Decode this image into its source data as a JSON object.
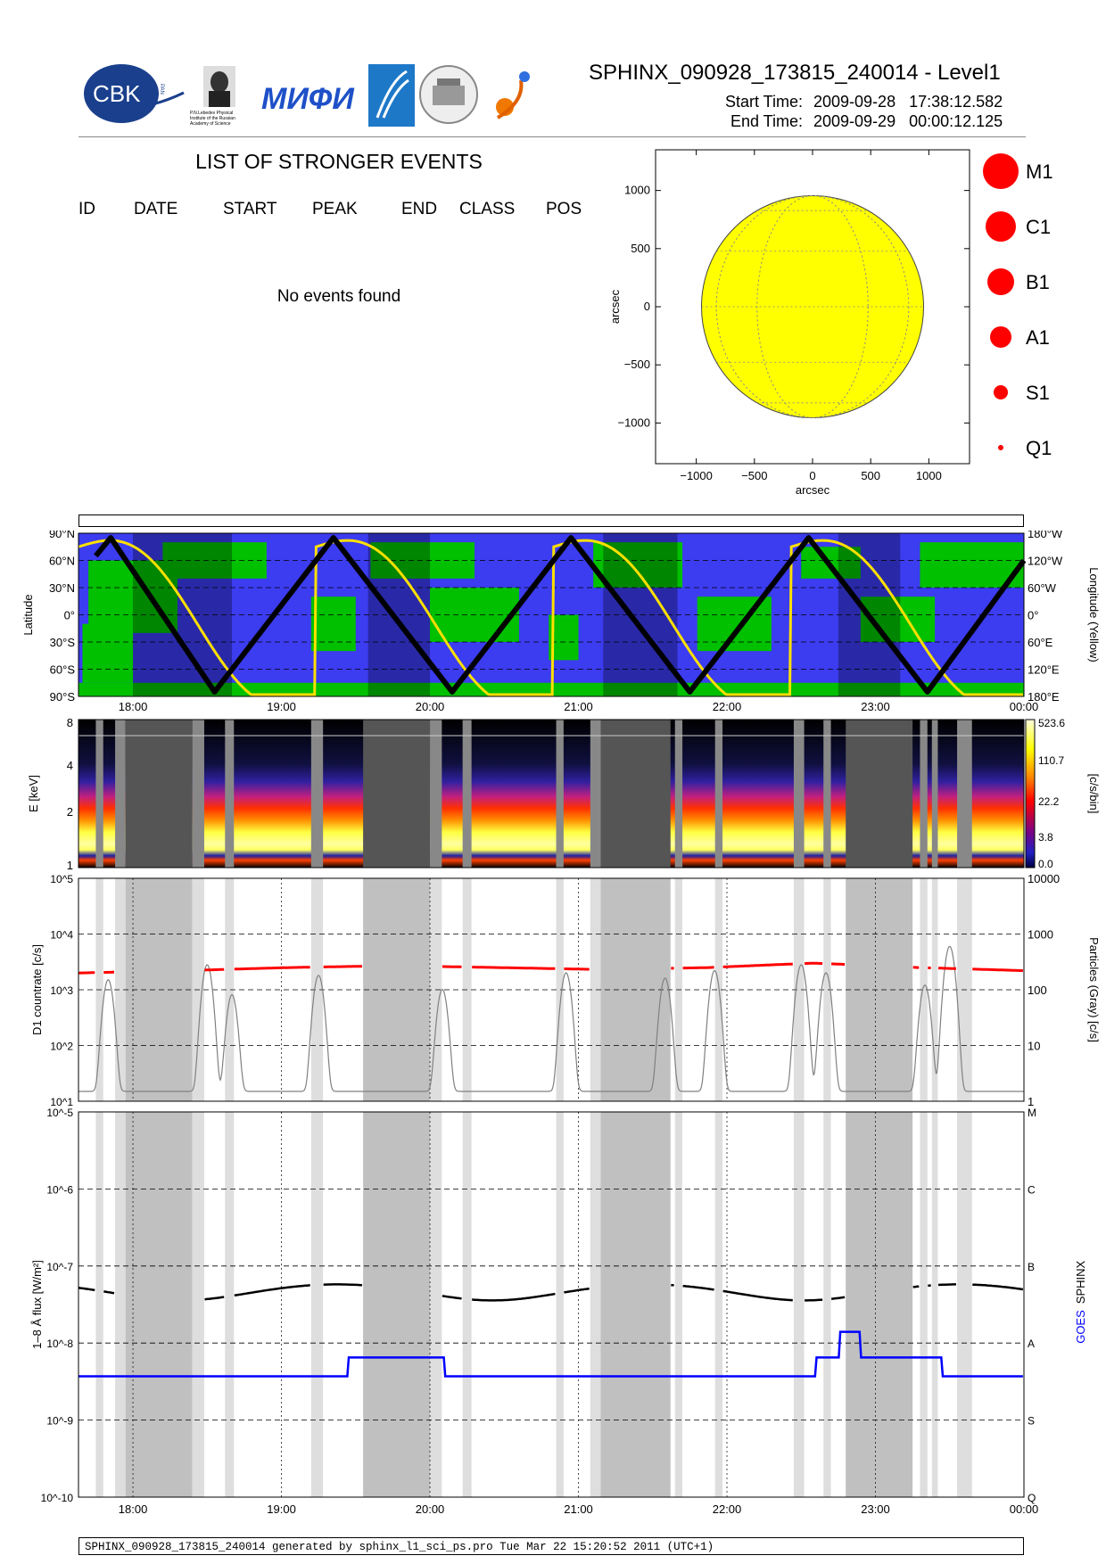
{
  "header": {
    "title": "SPHINX_090928_173815_240014 - Level1",
    "start_label": "Start Time:",
    "start_value": "2009-09-28   17:38:12.582",
    "end_label": "End Time:",
    "end_value": "2009-09-29   00:00:12.125"
  },
  "logos": {
    "cbk": "CBK",
    "cbk_pan": "PAN",
    "lebedev": "P.N.Lebedev Physical Institute of the Russian Academy of Science",
    "mifi": "МИФИ"
  },
  "events": {
    "title": "LIST OF STRONGER EVENTS",
    "columns": [
      "ID",
      "DATE",
      "START",
      "PEAK",
      "END",
      "CLASS",
      "POS"
    ],
    "empty_message": "No events found"
  },
  "colors": {
    "sun": "#ffff00",
    "marker": "#ff0000",
    "map_blue": "#3c3cf0",
    "map_green": "#00c000",
    "sphinx": "#000000",
    "goes": "#0000ff",
    "particles": "#808080",
    "counts": "#ff0000"
  },
  "chart_data": [
    {
      "type": "scatter",
      "name": "sun-disk",
      "xlabel": "arcsec",
      "ylabel": "arcsec",
      "xlim": [
        -1350,
        1350
      ],
      "ylim": [
        -1350,
        1350
      ],
      "xticks": [
        -1000,
        -500,
        0,
        500,
        1000
      ],
      "yticks": [
        1000,
        500,
        0,
        -500,
        -1000
      ],
      "xtick_labels": [
        "−1000",
        "−500",
        "0",
        "500",
        "1000"
      ],
      "ytick_labels": [
        "1000",
        "500",
        "0",
        "−500",
        "−1000"
      ],
      "solar_radius": 955,
      "legend_classes": [
        "M1",
        "C1",
        "B1",
        "A1",
        "S1",
        "Q1"
      ],
      "legend_sizes": [
        20,
        17,
        15,
        12,
        8,
        3
      ]
    },
    {
      "type": "line",
      "name": "orbit-latitude-map",
      "ylabel": "Latitude",
      "y2label": "Longitude (Yellow)",
      "x_time_range": [
        "17:38",
        "24:00"
      ],
      "x_tick_labels": [
        "18:00",
        "19:00",
        "20:00",
        "21:00",
        "22:00",
        "23:00",
        "00:00"
      ],
      "y_tick_labels": [
        "90°N",
        "60°N",
        "30°N",
        "0°",
        "30°S",
        "60°S",
        "90°S"
      ],
      "y_ticks": [
        90,
        60,
        30,
        0,
        -30,
        -60,
        -90
      ],
      "y2_tick_labels": [
        "180°W",
        "120°W",
        "60°W",
        "0°",
        "60°E",
        "120°E",
        "180°E"
      ],
      "latitude_extrema": [
        [
          17.75,
          65
        ],
        [
          17.85,
          85
        ],
        [
          18.55,
          -85
        ],
        [
          19.35,
          85
        ],
        [
          20.15,
          -85
        ],
        [
          20.95,
          85
        ],
        [
          21.75,
          -85
        ],
        [
          22.55,
          85
        ],
        [
          23.35,
          -85
        ],
        [
          24.0,
          60
        ]
      ],
      "eclipse_intervals": [
        [
          "18:00",
          "18:40"
        ],
        [
          "19:35",
          "20:00"
        ],
        [
          "21:10",
          "21:40"
        ],
        [
          "22:45",
          "23:10"
        ]
      ]
    },
    {
      "type": "heatmap",
      "name": "spectrogram",
      "ylabel": "E [keV]",
      "y_tick_labels": [
        "8",
        "4",
        "2",
        "1"
      ],
      "colorbar_labels": [
        "523.6",
        "110.7",
        "22.2",
        "3.8",
        "0.0"
      ],
      "colorbar_title": "[c/s/bin]",
      "x_tick_labels": [
        "18:00",
        "19:00",
        "20:00",
        "21:00",
        "22:00",
        "23:00",
        "00:00"
      ]
    },
    {
      "type": "line",
      "name": "countrate",
      "ylabel": "D1 countrate [c/s]",
      "y2label": "Particles (Gray) [c/s]",
      "y_scale": "log",
      "ylim": [
        10,
        100000
      ],
      "y_tick_labels": [
        "10^5",
        "10^4",
        "10^3",
        "10^2",
        "10^1"
      ],
      "y2_tick_labels": [
        "10000",
        "1000",
        "100",
        "10",
        "1"
      ],
      "series": [
        {
          "name": "D1 countrate",
          "color": "red",
          "approx_values": [
            2000,
            2200,
            2500,
            2700,
            2500,
            2300,
            2500,
            3000,
            2500,
            2200
          ]
        },
        {
          "name": "Particles (Gray)",
          "color": "gray",
          "peaks": [
            [
              "17:50",
              150
            ],
            [
              "18:30",
              280
            ],
            [
              "18:40",
              80
            ],
            [
              "19:15",
              180
            ],
            [
              "20:05",
              100
            ],
            [
              "20:55",
              200
            ],
            [
              "21:35",
              160
            ],
            [
              "21:55",
              220
            ],
            [
              "22:30",
              280
            ],
            [
              "22:40",
              200
            ],
            [
              "23:20",
              120
            ],
            [
              "23:30",
              600
            ]
          ]
        }
      ]
    },
    {
      "type": "line",
      "name": "flux",
      "ylabel": "1–8 Å flux [W/m²]",
      "y2label": "SPHINX GOES",
      "y2label_parts": [
        "SPHINX",
        "GOES"
      ],
      "y_scale": "log",
      "ylim": [
        1e-10,
        1e-05
      ],
      "y_tick_labels": [
        "10^-5",
        "10^-6",
        "10^-7",
        "10^-8",
        "10^-9",
        "10^-10"
      ],
      "class_labels": [
        "M",
        "C",
        "B",
        "A",
        "S",
        "Q"
      ],
      "x_tick_labels": [
        "18:00",
        "19:00",
        "20:00",
        "21:00",
        "22:00",
        "23:00",
        "00:00"
      ],
      "series": [
        {
          "name": "SPHINX",
          "color": "black",
          "approx_level": 5.5e-08
        },
        {
          "name": "GOES",
          "color": "blue",
          "approx_level": 3.7e-09,
          "bump_level": 6.5e-09,
          "peak": [
            "22:50",
            1.4e-08
          ]
        }
      ]
    }
  ],
  "footer": "SPHINX_090928_173815_240014 generated by sphinx_l1_sci_ps.pro Tue Mar 22 15:20:52 2011 (UTC+1)"
}
